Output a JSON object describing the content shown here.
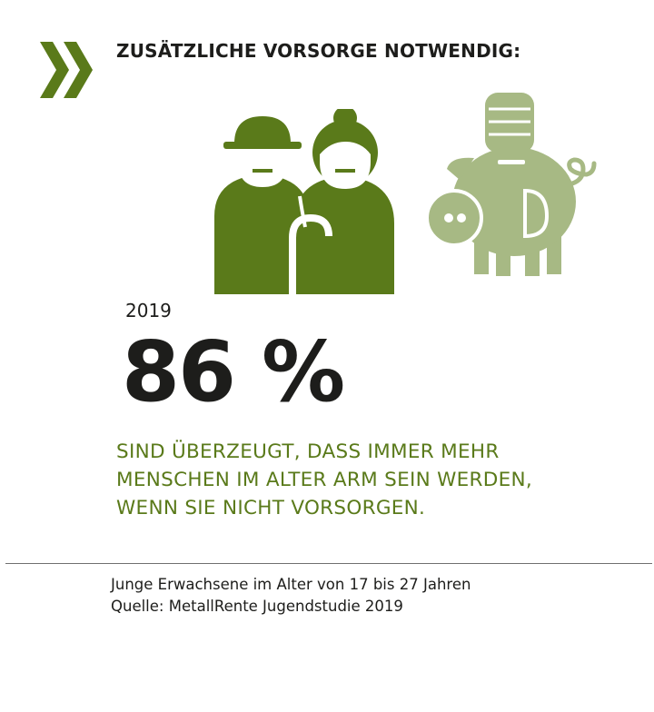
{
  "header": {
    "title": "ZUSÄTZLICHE VORSORGE NOTWENDIG:"
  },
  "icons": {
    "marker": "double-chevron-right-icon",
    "people": "elderly-couple-icon",
    "savings": "piggy-bank-with-coins-icon"
  },
  "stat": {
    "year": "2019",
    "value": "86 %",
    "statement_lines": [
      "SIND ÜBERZEUGT, DASS IMMER MEHR",
      "MENSCHEN IM ALTER ARM SEIN WERDEN,",
      "WENN SIE NICHT VORSORGEN."
    ]
  },
  "footer": {
    "lines": [
      "Junge Erwachsene im Alter von 17 bis 27 Jahren",
      "Quelle: MetallRente Jugendstudie 2019"
    ]
  },
  "colors": {
    "accent_green": "#5a7a1a",
    "light_green": "#a7b984",
    "text_dark": "#1d1d1b"
  }
}
